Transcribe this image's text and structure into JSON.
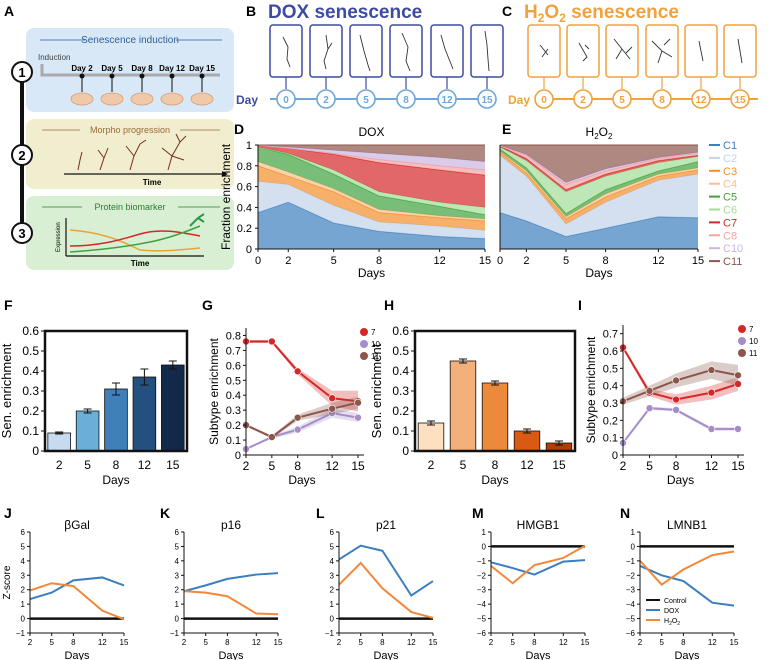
{
  "panel_letters": {
    "A": "A",
    "B": "B",
    "C": "C",
    "D": "D",
    "E": "E",
    "F": "F",
    "G": "G",
    "H": "H",
    "I": "I",
    "J": "J",
    "K": "K",
    "L": "L",
    "M": "M",
    "N": "N"
  },
  "schematic": {
    "steps": [
      "1",
      "2",
      "3"
    ],
    "induction_title": "Senescence induction",
    "induction_label": "Induction",
    "induction_days": [
      "Day 2",
      "Day 5",
      "Day 8",
      "Day 12",
      "Day 15"
    ],
    "morpho_title": "Morpho progression",
    "morpho_time": "Time",
    "protein_title": "Protein biomarker",
    "protein_ylabel": "Expression",
    "protein_time": "Time"
  },
  "dox_header": {
    "title": "DOX senescence",
    "day_label": "Day",
    "days": [
      "0",
      "2",
      "5",
      "8",
      "12",
      "15"
    ]
  },
  "h2o2_header": {
    "title_parts": [
      "H",
      "2",
      "O",
      "2",
      " senescence"
    ],
    "day_label": "Day",
    "days": [
      "0",
      "2",
      "5",
      "8",
      "12",
      "15"
    ]
  },
  "colors": {
    "dox_blue": "#3d4ba3",
    "day_light_blue": "#6fa7d8",
    "h2o2_orange": "#f0a23c",
    "bar_dox": [
      "#c6dbef",
      "#6baed6",
      "#3f7fba",
      "#23507f",
      "#13294b"
    ],
    "bar_h2o2": [
      "#fde0c0",
      "#f4b07a",
      "#ec8a3c",
      "#d95a12",
      "#b33c07"
    ],
    "series_blue": "#3c7ebf",
    "series_orange": "#f2883a",
    "control": "#111111"
  },
  "legend_clusters": [
    {
      "name": "C1",
      "color": "#3d7fbf"
    },
    {
      "name": "C2",
      "color": "#c2d3ea"
    },
    {
      "name": "C3",
      "color": "#f28e2b"
    },
    {
      "name": "C4",
      "color": "#f5c08a"
    },
    {
      "name": "C5",
      "color": "#3ea33e"
    },
    {
      "name": "C6",
      "color": "#a4dc97"
    },
    {
      "name": "C7",
      "color": "#d62728"
    },
    {
      "name": "C8",
      "color": "#f4a3a3"
    },
    {
      "name": "C10",
      "color": "#cbb6e0"
    },
    {
      "name": "C11",
      "color": "#8c564b"
    }
  ],
  "chart_data": [
    {
      "id": "D",
      "type": "area",
      "title": "DOX",
      "xlabel": "Days",
      "ylabel": "Fraction enrichment",
      "x": [
        0,
        2,
        5,
        8,
        12,
        15
      ],
      "xticks": [
        "0",
        "2",
        "5",
        "8",
        "12",
        "15"
      ],
      "yticks": [
        "0",
        "0.2",
        "0.4",
        "0.6",
        "0.8",
        "1"
      ],
      "ylim": [
        0,
        1
      ],
      "cumulative_boundaries": [
        {
          "name": "C1",
          "values": [
            0.35,
            0.45,
            0.25,
            0.17,
            0.12,
            0.1
          ]
        },
        {
          "name": "C2",
          "values": [
            0.65,
            0.62,
            0.42,
            0.26,
            0.22,
            0.18
          ]
        },
        {
          "name": "C3",
          "values": [
            0.8,
            0.7,
            0.55,
            0.35,
            0.3,
            0.27
          ]
        },
        {
          "name": "C4",
          "values": [
            0.84,
            0.74,
            0.58,
            0.38,
            0.32,
            0.29
          ]
        },
        {
          "name": "C5",
          "values": [
            0.98,
            0.91,
            0.72,
            0.51,
            0.41,
            0.33
          ]
        },
        {
          "name": "C6",
          "values": [
            0.98,
            0.92,
            0.76,
            0.55,
            0.45,
            0.4
          ]
        },
        {
          "name": "C7",
          "values": [
            1.0,
            0.97,
            0.91,
            0.83,
            0.76,
            0.71
          ]
        },
        {
          "name": "C8",
          "values": [
            1.0,
            0.97,
            0.92,
            0.86,
            0.8,
            0.76
          ]
        },
        {
          "name": "C10",
          "values": [
            1.0,
            0.98,
            0.95,
            0.92,
            0.88,
            0.84
          ]
        },
        {
          "name": "C11",
          "values": [
            1.0,
            1.0,
            1.0,
            1.0,
            1.0,
            1.0
          ]
        }
      ]
    },
    {
      "id": "E",
      "type": "area",
      "title_parts": [
        "H",
        "2",
        "O",
        "2"
      ],
      "xlabel": "Days",
      "x": [
        0,
        2,
        5,
        8,
        12,
        15
      ],
      "xticks": [
        "0",
        "2",
        "5",
        "8",
        "12",
        "15"
      ],
      "yticks": [],
      "ylim": [
        0,
        1
      ],
      "cumulative_boundaries": [
        {
          "name": "C1",
          "values": [
            0.35,
            0.27,
            0.12,
            0.2,
            0.31,
            0.3
          ]
        },
        {
          "name": "C2",
          "values": [
            0.9,
            0.7,
            0.24,
            0.45,
            0.66,
            0.72
          ]
        },
        {
          "name": "C3",
          "values": [
            0.93,
            0.73,
            0.29,
            0.5,
            0.7,
            0.76
          ]
        },
        {
          "name": "C4",
          "values": [
            0.94,
            0.75,
            0.31,
            0.53,
            0.72,
            0.78
          ]
        },
        {
          "name": "C5",
          "values": [
            0.96,
            0.78,
            0.34,
            0.57,
            0.75,
            0.84
          ]
        },
        {
          "name": "C6",
          "values": [
            0.98,
            0.85,
            0.55,
            0.7,
            0.83,
            0.89
          ]
        },
        {
          "name": "C7",
          "values": [
            0.99,
            0.87,
            0.57,
            0.72,
            0.85,
            0.9
          ]
        },
        {
          "name": "C8",
          "values": [
            0.99,
            0.9,
            0.62,
            0.75,
            0.87,
            0.92
          ]
        },
        {
          "name": "C10",
          "values": [
            0.995,
            0.91,
            0.64,
            0.77,
            0.88,
            0.93
          ]
        },
        {
          "name": "C11",
          "values": [
            1.0,
            1.0,
            1.0,
            1.0,
            1.0,
            1.0
          ]
        }
      ]
    },
    {
      "id": "F",
      "type": "bar",
      "ylabel": "Sen. enrichment",
      "xlabel": "Days",
      "categories": [
        "2",
        "5",
        "8",
        "12",
        "15"
      ],
      "values": [
        0.09,
        0.2,
        0.31,
        0.37,
        0.43
      ],
      "errors": [
        0.005,
        0.01,
        0.03,
        0.04,
        0.02
      ],
      "ylim": [
        0,
        0.6
      ],
      "yticks": [
        "0",
        "0.1",
        "0.2",
        "0.3",
        "0.4",
        "0.5",
        "0.6"
      ]
    },
    {
      "id": "G",
      "type": "line",
      "ylabel": "Subtype enrichment",
      "xlabel": "Days",
      "x": [
        2,
        5,
        8,
        12,
        15
      ],
      "xticks": [
        "2",
        "5",
        "8",
        "12",
        "15"
      ],
      "ylim": [
        0,
        0.85
      ],
      "yticks": [
        "0",
        "0.1",
        "0.2",
        "0.3",
        "0.4",
        "0.5",
        "0.6",
        "0.7",
        "0.8"
      ],
      "series": [
        {
          "name": "7",
          "color": "#d62728",
          "values": [
            0.76,
            0.76,
            0.56,
            0.38,
            0.36
          ],
          "band": [
            0.01,
            0.01,
            0.02,
            0.05,
            0.07
          ]
        },
        {
          "name": "10",
          "color": "#a58dc9",
          "values": [
            0.04,
            0.12,
            0.17,
            0.28,
            0.25
          ],
          "band": [
            0.005,
            0.01,
            0.02,
            0.03,
            0.03
          ]
        },
        {
          "name": "11",
          "color": "#8c564b",
          "values": [
            0.2,
            0.12,
            0.25,
            0.31,
            0.35
          ],
          "band": [
            0.01,
            0.01,
            0.02,
            0.04,
            0.04
          ]
        }
      ]
    },
    {
      "id": "H",
      "type": "bar",
      "ylabel": "Sen. enrichment",
      "xlabel": "Days",
      "categories": [
        "2",
        "5",
        "8",
        "12",
        "15"
      ],
      "values": [
        0.14,
        0.45,
        0.34,
        0.1,
        0.04
      ],
      "errors": [
        0.01,
        0.01,
        0.01,
        0.01,
        0.01
      ],
      "ylim": [
        0,
        0.6
      ],
      "yticks": [
        "0",
        "0.1",
        "0.2",
        "0.3",
        "0.4",
        "0.5",
        "0.6"
      ]
    },
    {
      "id": "I",
      "type": "line",
      "ylabel": "Subtype enrichment",
      "xlabel": "Days",
      "x": [
        2,
        5,
        8,
        12,
        15
      ],
      "xticks": [
        "2",
        "5",
        "8",
        "12",
        "15"
      ],
      "ylim": [
        0,
        0.75
      ],
      "yticks": [
        "0",
        "0.1",
        "0.2",
        "0.3",
        "0.4",
        "0.5",
        "0.6",
        "0.7"
      ],
      "series": [
        {
          "name": "7",
          "color": "#d62728",
          "values": [
            0.62,
            0.36,
            0.32,
            0.36,
            0.41
          ],
          "band": [
            0.01,
            0.02,
            0.03,
            0.04,
            0.04
          ]
        },
        {
          "name": "10",
          "color": "#a58dc9",
          "values": [
            0.07,
            0.27,
            0.26,
            0.15,
            0.15
          ],
          "band": [
            0.005,
            0.01,
            0.01,
            0.01,
            0.01
          ]
        },
        {
          "name": "11",
          "color": "#8c564b",
          "values": [
            0.31,
            0.37,
            0.43,
            0.49,
            0.46
          ],
          "band": [
            0.02,
            0.03,
            0.04,
            0.05,
            0.06
          ]
        }
      ]
    },
    {
      "id": "J",
      "type": "line",
      "title": "βGal",
      "ylabel": "Z-score",
      "xlabel": "Days",
      "x": [
        2,
        5,
        8,
        12,
        15
      ],
      "xticks": [
        "2",
        "5",
        "8",
        "12",
        "15"
      ],
      "ylim": [
        -1,
        6
      ],
      "yticks": [
        "−1",
        "0",
        "1",
        "2",
        "3",
        "4",
        "5",
        "6"
      ],
      "series": [
        {
          "name": "Control",
          "values": [
            0,
            0,
            0,
            0,
            0
          ]
        },
        {
          "name": "DOX",
          "values": [
            1.35,
            1.8,
            2.65,
            2.85,
            2.3
          ]
        },
        {
          "name": "H2O2",
          "values": [
            1.95,
            2.45,
            2.25,
            0.55,
            -0.05
          ]
        }
      ]
    },
    {
      "id": "K",
      "type": "line",
      "title": "p16",
      "xlabel": "Days",
      "x": [
        2,
        5,
        8,
        12,
        15
      ],
      "xticks": [
        "2",
        "5",
        "8",
        "12",
        "15"
      ],
      "ylim": [
        -1,
        6
      ],
      "yticks": [
        "−1",
        "0",
        "1",
        "2",
        "3",
        "4",
        "5",
        "6"
      ],
      "series": [
        {
          "name": "Control",
          "values": [
            0,
            0,
            0,
            0,
            0
          ]
        },
        {
          "name": "DOX",
          "values": [
            1.9,
            2.3,
            2.75,
            3.05,
            3.15
          ]
        },
        {
          "name": "H2O2",
          "values": [
            1.9,
            1.8,
            1.55,
            0.35,
            0.3
          ]
        }
      ]
    },
    {
      "id": "L",
      "type": "line",
      "title": "p21",
      "xlabel": "Days",
      "x": [
        2,
        5,
        8,
        12,
        15
      ],
      "xticks": [
        "2",
        "5",
        "8",
        "12",
        "15"
      ],
      "ylim": [
        -1,
        6
      ],
      "yticks": [
        "−1",
        "0",
        "1",
        "2",
        "3",
        "4",
        "5",
        "6"
      ],
      "series": [
        {
          "name": "Control",
          "values": [
            0,
            0,
            0,
            0,
            0
          ]
        },
        {
          "name": "DOX",
          "values": [
            4.1,
            5.05,
            4.7,
            1.6,
            2.6
          ]
        },
        {
          "name": "H2O2",
          "values": [
            2.35,
            3.85,
            2.1,
            0.45,
            0.05
          ]
        }
      ]
    },
    {
      "id": "M",
      "type": "line",
      "title": "HMGB1",
      "xlabel": "Days",
      "x": [
        2,
        5,
        8,
        12,
        15
      ],
      "xticks": [
        "2",
        "5",
        "8",
        "12",
        "15"
      ],
      "ylim": [
        -6,
        1
      ],
      "yticks": [
        "−6",
        "−5",
        "−4",
        "−3",
        "−2",
        "−1",
        "0",
        "1"
      ],
      "series": [
        {
          "name": "Control",
          "values": [
            0,
            0,
            0,
            0,
            0
          ]
        },
        {
          "name": "DOX",
          "values": [
            -1.1,
            -1.5,
            -1.95,
            -1.05,
            -0.95
          ]
        },
        {
          "name": "H2O2",
          "values": [
            -1.35,
            -2.55,
            -1.3,
            -0.8,
            0.05
          ]
        }
      ]
    },
    {
      "id": "N",
      "type": "line",
      "title": "LMNB1",
      "xlabel": "Days",
      "x": [
        2,
        5,
        8,
        12,
        15
      ],
      "xticks": [
        "2",
        "5",
        "8",
        "12",
        "15"
      ],
      "ylim": [
        -6,
        1
      ],
      "yticks": [
        "−6",
        "−5",
        "−4",
        "−3",
        "−2",
        "−1",
        "0",
        "1"
      ],
      "legend": [
        "Control",
        "DOX",
        "H2O2"
      ],
      "series": [
        {
          "name": "Control",
          "values": [
            0,
            0,
            0,
            0,
            0
          ]
        },
        {
          "name": "DOX",
          "values": [
            -1.35,
            -2.0,
            -2.4,
            -3.9,
            -4.1
          ]
        },
        {
          "name": "H2O2",
          "values": [
            -1.0,
            -2.65,
            -1.6,
            -0.6,
            -0.35
          ]
        }
      ]
    }
  ]
}
